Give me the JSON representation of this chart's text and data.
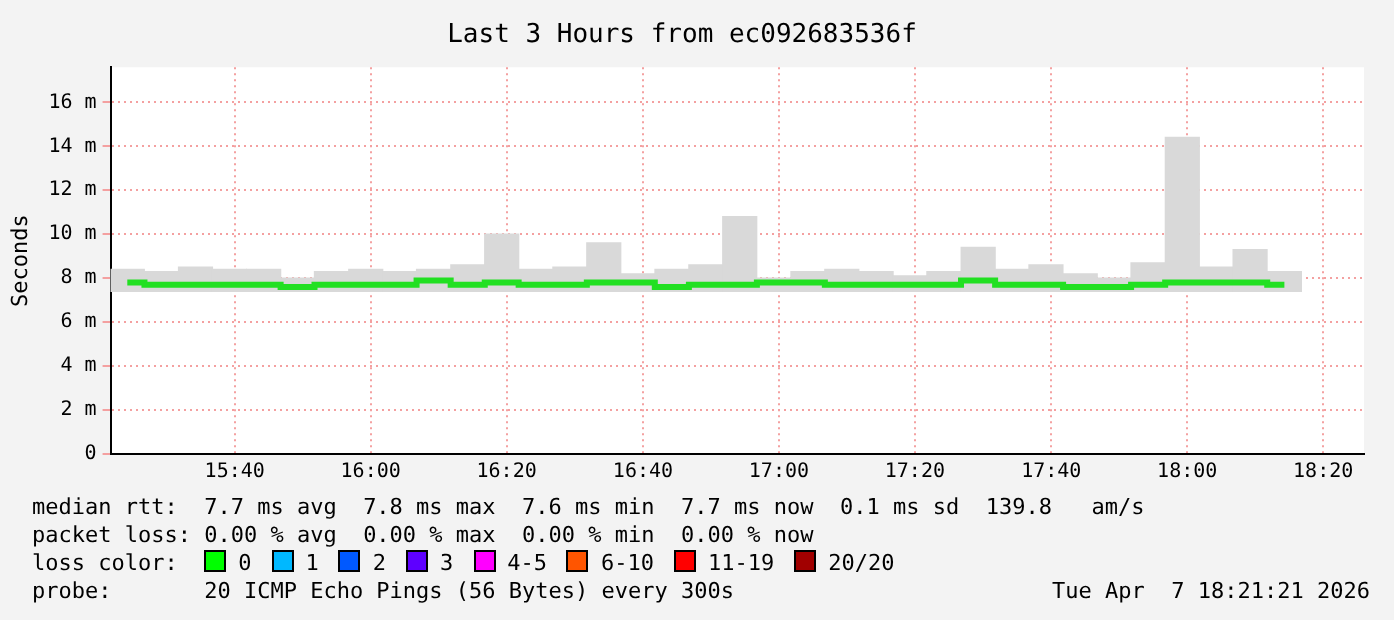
{
  "chart_data": {
    "type": "bar",
    "title": "Last 3 Hours from ec092683536f",
    "ylabel": "Seconds",
    "x": [
      15.404,
      15.488,
      15.571,
      15.654,
      15.738,
      15.821,
      15.904,
      15.988,
      16.071,
      16.154,
      16.238,
      16.321,
      16.404,
      16.488,
      16.571,
      16.654,
      16.738,
      16.821,
      16.904,
      16.988,
      17.071,
      17.154,
      17.238,
      17.321,
      17.404,
      17.488,
      17.571,
      17.654,
      17.738,
      17.821,
      17.904,
      17.988,
      18.071,
      18.154,
      18.238
    ],
    "series": [
      {
        "color": "#d9d9d9",
        "base": [
          7.4,
          7.4,
          7.4,
          7.4,
          7.4,
          7.4,
          7.4,
          7.4,
          7.4,
          7.4,
          7.4,
          7.4,
          7.4,
          7.4,
          7.4,
          7.4,
          7.4,
          7.4,
          7.4,
          7.4,
          7.4,
          7.4,
          7.4,
          7.4,
          7.4,
          7.4,
          7.4,
          7.4,
          7.4,
          7.4,
          7.4,
          7.4,
          7.4,
          7.4,
          7.4
        ],
        "values": [
          1.0,
          0.9,
          1.1,
          1.0,
          1.0,
          0.6,
          0.9,
          1.0,
          0.9,
          1.0,
          1.2,
          2.6,
          1.0,
          1.1,
          2.2,
          0.8,
          1.0,
          1.2,
          3.4,
          0.6,
          0.9,
          1.0,
          0.9,
          0.7,
          0.9,
          2.0,
          1.0,
          1.2,
          0.8,
          0.6,
          1.3,
          7.0,
          1.1,
          1.9,
          0.9
        ]
      },
      {
        "type": "step",
        "color": "#22e022",
        "values": [
          7.8,
          7.7,
          7.7,
          7.7,
          7.7,
          7.6,
          7.7,
          7.7,
          7.7,
          7.9,
          7.7,
          7.8,
          7.7,
          7.7,
          7.8,
          7.8,
          7.6,
          7.7,
          7.7,
          7.8,
          7.8,
          7.7,
          7.7,
          7.7,
          7.7,
          7.9,
          7.7,
          7.7,
          7.6,
          7.6,
          7.7,
          7.8,
          7.8,
          7.8,
          7.7
        ]
      }
    ],
    "xlim": [
      15.363,
      18.433
    ],
    "xticks": [
      {
        "value": 15.667,
        "label": "15:40"
      },
      {
        "value": 16,
        "label": "16:00"
      },
      {
        "value": 16.333,
        "label": "16:20"
      },
      {
        "value": 16.667,
        "label": "16:40"
      },
      {
        "value": 17,
        "label": "17:00"
      },
      {
        "value": 17.333,
        "label": "17:20"
      },
      {
        "value": 17.667,
        "label": "17:40"
      },
      {
        "value": 18,
        "label": "18:00"
      },
      {
        "value": 18.333,
        "label": "18:20"
      }
    ],
    "ylim": [
      0,
      17.6
    ],
    "yticks": [
      0,
      {
        "value": 2,
        "label": "2 m"
      },
      {
        "value": 4,
        "label": "4 m"
      },
      {
        "value": 6,
        "label": "6 m"
      },
      {
        "value": 8,
        "label": "8 m"
      },
      {
        "value": 10,
        "label": "10 m"
      },
      {
        "value": 12,
        "label": "12 m"
      },
      {
        "value": 14,
        "label": "14 m"
      },
      {
        "value": 16,
        "label": "16 m"
      }
    ],
    "grid": true,
    "legend": false,
    "annotations": [
      "median rtt:  7.7 ms avg  7.8 ms max  7.6 ms min  7.7 ms now  0.1 ms sd  139.8   am/s",
      "packet loss: 0.00 % avg  0.00 % max  0.00 % min  0.00 % now",
      "loss color:  0  1  2  3  4-5  6-10  11-19  20/20",
      "probe:       20 ICMP Echo Pings (56 Bytes) every 300s",
      "Tue Apr  7 18:21:21 2026"
    ]
  }
}
